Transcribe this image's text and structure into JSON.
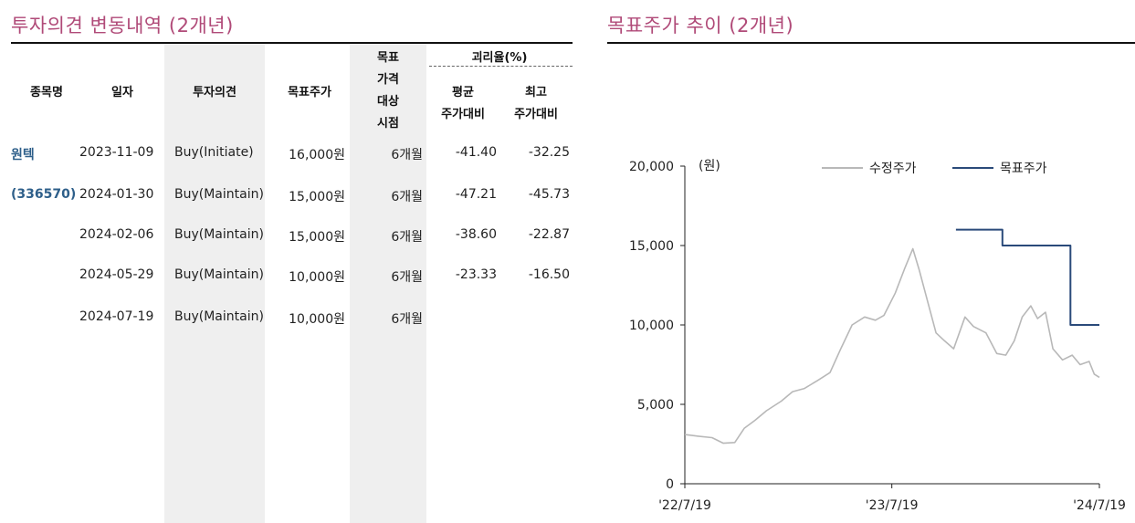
{
  "left": {
    "title": "투자의견 변동내역 (2개년)",
    "headers": {
      "stock": "종목명",
      "date": "일자",
      "opinion": "투자의견",
      "target": "목표주가",
      "period": [
        "목표",
        "가격",
        "대상",
        "시점"
      ],
      "gap_group": "괴리율(%)",
      "gap_avg": [
        "평균",
        "주가대비"
      ],
      "gap_max": [
        "최고",
        "주가대비"
      ]
    },
    "stock_name": "원텍",
    "stock_code": "(336570)",
    "rows": [
      {
        "date": "2023-11-09",
        "opinion": "Buy(Initiate)",
        "target": "16,000원",
        "period": "6개월",
        "avg": "-41.40",
        "max": "-32.25"
      },
      {
        "date": "2024-01-30",
        "opinion": "Buy(Maintain)",
        "target": "15,000원",
        "period": "6개월",
        "avg": "-47.21",
        "max": "-45.73"
      },
      {
        "date": "2024-02-06",
        "opinion": "Buy(Maintain)",
        "target": "15,000원",
        "period": "6개월",
        "avg": "-38.60",
        "max": "-22.87"
      },
      {
        "date": "2024-05-29",
        "opinion": "Buy(Maintain)",
        "target": "10,000원",
        "period": "6개월",
        "avg": "-23.33",
        "max": "-16.50"
      },
      {
        "date": "2024-07-19",
        "opinion": "Buy(Maintain)",
        "target": "10,000원",
        "period": "6개월",
        "avg": "",
        "max": ""
      }
    ]
  },
  "right": {
    "title": "목표주가 추이 (2개년)"
  },
  "chart_data": {
    "type": "line",
    "unit_label": "(원)",
    "ylim": [
      0,
      20000
    ],
    "y_ticks": [
      "0",
      "5,000",
      "10,000",
      "15,000",
      "20,000"
    ],
    "x_ticks": [
      "'22/7/19",
      "'23/7/19",
      "'24/7/19"
    ],
    "colors": {
      "adjusted": "#b8b8b8",
      "target": "#2a4a7a"
    },
    "series": [
      {
        "name": "수정주가",
        "points": [
          [
            "2022-07-19",
            3100
          ],
          [
            "2022-08-10",
            3000
          ],
          [
            "2022-09-05",
            2900
          ],
          [
            "2022-09-25",
            2550
          ],
          [
            "2022-10-15",
            2600
          ],
          [
            "2022-11-01",
            3500
          ],
          [
            "2022-11-20",
            4000
          ],
          [
            "2022-12-10",
            4600
          ],
          [
            "2023-01-05",
            5200
          ],
          [
            "2023-01-25",
            5800
          ],
          [
            "2023-02-15",
            6000
          ],
          [
            "2023-03-10",
            6500
          ],
          [
            "2023-04-01",
            7000
          ],
          [
            "2023-04-20",
            8500
          ],
          [
            "2023-05-10",
            10000
          ],
          [
            "2023-06-01",
            10500
          ],
          [
            "2023-06-20",
            10300
          ],
          [
            "2023-07-05",
            10600
          ],
          [
            "2023-07-25",
            12000
          ],
          [
            "2023-08-10",
            13500
          ],
          [
            "2023-08-25",
            14800
          ],
          [
            "2023-09-05",
            13500
          ],
          [
            "2023-09-20",
            11500
          ],
          [
            "2023-10-05",
            9500
          ],
          [
            "2023-10-20",
            9000
          ],
          [
            "2023-11-05",
            8500
          ],
          [
            "2023-11-25",
            10500
          ],
          [
            "2023-12-10",
            9900
          ],
          [
            "2024-01-01",
            9500
          ],
          [
            "2024-01-20",
            8200
          ],
          [
            "2024-02-05",
            8100
          ],
          [
            "2024-02-20",
            9000
          ],
          [
            "2024-03-05",
            10500
          ],
          [
            "2024-03-20",
            11200
          ],
          [
            "2024-04-01",
            10400
          ],
          [
            "2024-04-15",
            10800
          ],
          [
            "2024-04-28",
            8500
          ],
          [
            "2024-05-15",
            7800
          ],
          [
            "2024-06-01",
            8100
          ],
          [
            "2024-06-15",
            7500
          ],
          [
            "2024-07-01",
            7700
          ],
          [
            "2024-07-10",
            6900
          ],
          [
            "2024-07-19",
            6700
          ]
        ]
      },
      {
        "name": "목표주가",
        "points": [
          [
            "2023-11-09",
            16000
          ],
          [
            "2024-01-30",
            16000
          ],
          [
            "2024-01-30",
            15000
          ],
          [
            "2024-05-29",
            15000
          ],
          [
            "2024-05-29",
            10000
          ],
          [
            "2024-07-19",
            10000
          ]
        ]
      }
    ]
  }
}
